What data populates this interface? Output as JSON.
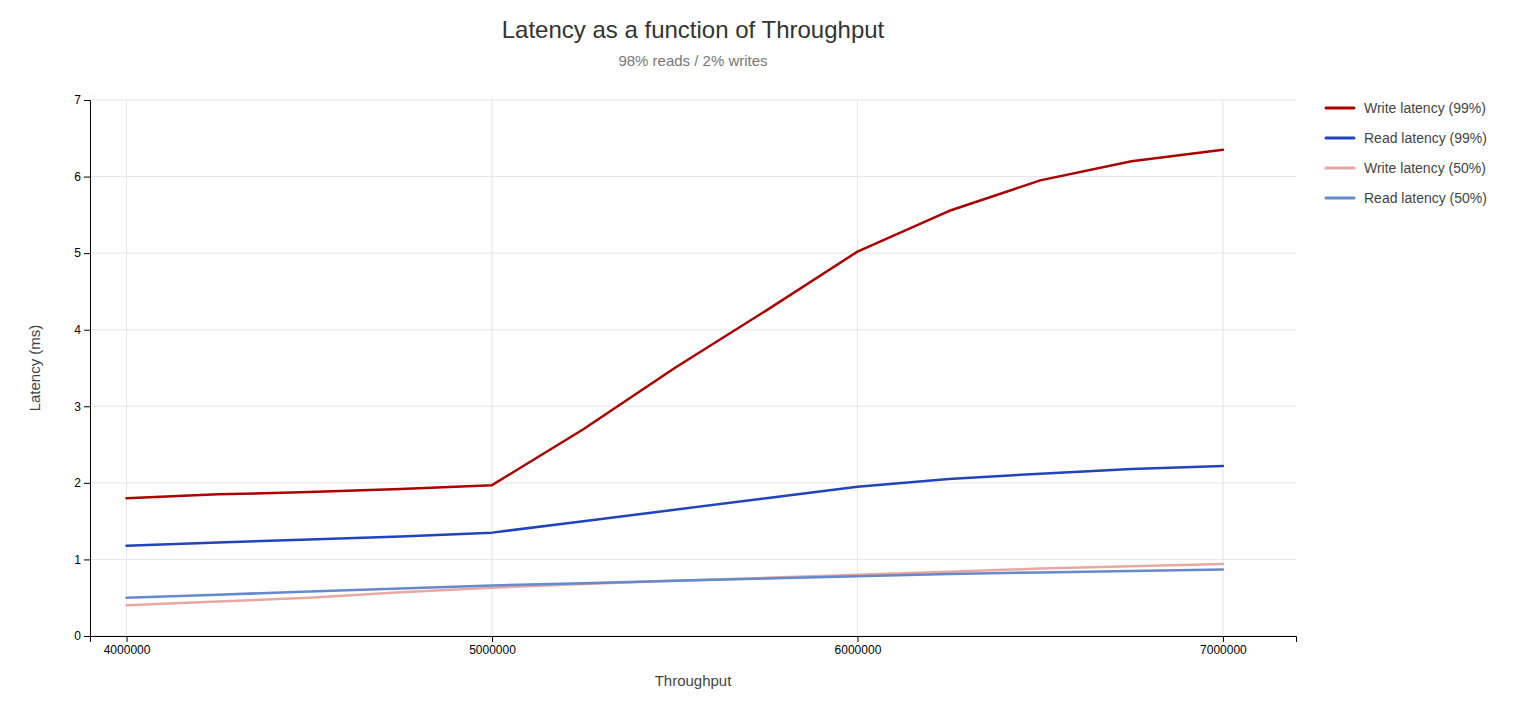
{
  "chart_data": {
    "type": "line",
    "title": "Latency as a function of Throughput",
    "subtitle": "98% reads / 2% writes",
    "xlabel": "Throughput",
    "ylabel": "Latency (ms)",
    "x": [
      4000000,
      4250000,
      4500000,
      4750000,
      5000000,
      5250000,
      5500000,
      5750000,
      6000000,
      6250000,
      6500000,
      6750000,
      7000000
    ],
    "series": [
      {
        "name": "Write latency (99%)",
        "color": "#aa0000",
        "values": [
          1.8,
          1.85,
          1.88,
          1.92,
          1.97,
          2.7,
          3.5,
          4.25,
          5.02,
          5.55,
          5.95,
          6.2,
          6.35
        ]
      },
      {
        "name": "Read latency (99%)",
        "color": "#2244bb",
        "values": [
          1.18,
          1.22,
          1.26,
          1.3,
          1.35,
          1.5,
          1.65,
          1.8,
          1.95,
          2.05,
          2.12,
          2.18,
          2.22
        ]
      },
      {
        "name": "Write latency (50%)",
        "color": "#e8a8a0",
        "values": [
          0.4,
          0.45,
          0.5,
          0.57,
          0.63,
          0.68,
          0.72,
          0.76,
          0.8,
          0.84,
          0.88,
          0.91,
          0.94
        ]
      },
      {
        "name": "Read latency (50%)",
        "color": "#6688cc",
        "values": [
          0.5,
          0.54,
          0.58,
          0.62,
          0.66,
          0.69,
          0.72,
          0.75,
          0.78,
          0.81,
          0.83,
          0.85,
          0.87
        ]
      }
    ],
    "xlim": [
      3900000,
      7200000
    ],
    "ylim": [
      0,
      7
    ],
    "xticks": [
      4000000,
      5000000,
      6000000,
      7000000
    ],
    "yticks": [
      0,
      1,
      2,
      3,
      4,
      5,
      6,
      7
    ],
    "grid": true,
    "legend": "right"
  }
}
